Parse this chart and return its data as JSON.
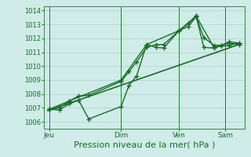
{
  "background_color": "#d0ece8",
  "grid_color": "#b0d0cc",
  "line_color": "#1a6b2a",
  "ylim": [
    1005.5,
    1014.3
  ],
  "yticks": [
    1006,
    1007,
    1008,
    1009,
    1010,
    1011,
    1012,
    1013,
    1014
  ],
  "xlabel": "Pression niveau de la mer( hPa )",
  "xlabel_fontsize": 8,
  "xtick_labels": [
    "Jeu",
    "Dim",
    "Ven",
    "Sam"
  ],
  "xtick_positions": [
    62,
    155,
    230,
    290
  ],
  "xlim": [
    55,
    315
  ],
  "series": [
    {
      "x": [
        62,
        75,
        88,
        100,
        113,
        155,
        165,
        175,
        188,
        200,
        210,
        230,
        242,
        252,
        262,
        275,
        285,
        295,
        308
      ],
      "y": [
        1006.9,
        1006.85,
        1007.3,
        1007.55,
        1006.2,
        1007.1,
        1008.6,
        1009.3,
        1011.55,
        1011.35,
        1011.3,
        1012.55,
        1012.85,
        1013.55,
        1012.05,
        1011.5,
        1011.5,
        1011.75,
        1011.65
      ],
      "marker": "+",
      "marker_size": 4,
      "linewidth": 1.0
    },
    {
      "x": [
        62,
        75,
        88,
        100,
        113,
        155,
        165,
        175,
        188,
        200,
        210,
        230,
        242,
        252,
        262,
        275,
        285,
        295,
        308
      ],
      "y": [
        1006.9,
        1007.0,
        1007.5,
        1007.85,
        1007.9,
        1008.9,
        1009.6,
        1010.3,
        1011.35,
        1011.55,
        1011.55,
        1012.55,
        1013.05,
        1013.6,
        1011.35,
        1011.3,
        1011.5,
        1011.65,
        1011.55
      ],
      "marker": "+",
      "marker_size": 4,
      "linewidth": 1.0
    },
    {
      "x": [
        62,
        88,
        155,
        188,
        230,
        252,
        275,
        295,
        308
      ],
      "y": [
        1006.9,
        1007.5,
        1009.0,
        1011.55,
        1012.55,
        1013.6,
        1011.35,
        1011.5,
        1011.65
      ],
      "marker": "+",
      "marker_size": 4,
      "linewidth": 1.0
    },
    {
      "x": [
        60,
        310
      ],
      "y": [
        1006.8,
        1011.6
      ],
      "marker": null,
      "marker_size": 0,
      "linewidth": 1.2
    }
  ],
  "vlines": [
    62,
    155,
    230,
    290
  ],
  "vline_color": "#2a7a3a",
  "vline_lw": 0.7,
  "spine_color": "#4a8a5a",
  "tick_color": "#2a7a3a",
  "ytick_fontsize": 6.0,
  "xtick_fontsize": 6.5
}
